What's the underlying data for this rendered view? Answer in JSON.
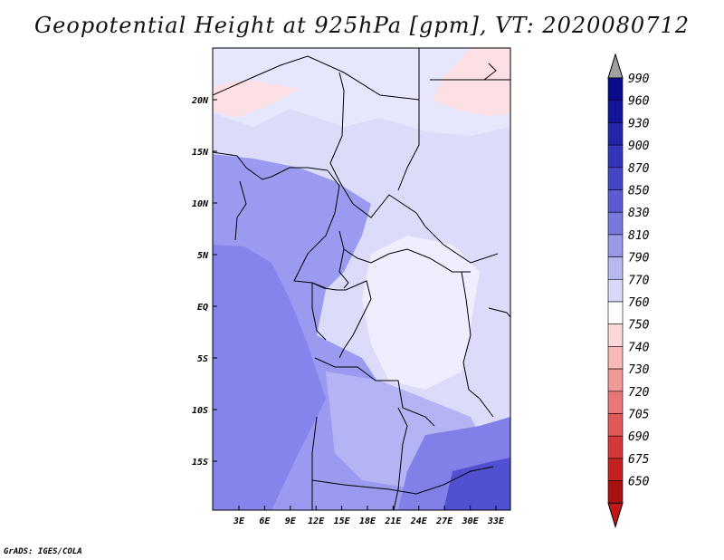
{
  "title": "Geopotential Height at 925hPa [gpm], VT: 2020080712",
  "credit": "GrADS: IGES/COLA",
  "map": {
    "lat_labels": [
      "20N",
      "15N",
      "10N",
      "5N",
      "EQ",
      "5S",
      "10S",
      "15S"
    ],
    "lon_labels": [
      "3E",
      "6E",
      "9E",
      "12E",
      "15E",
      "18E",
      "21E",
      "24E",
      "27E",
      "30E",
      "33E"
    ]
  },
  "colorbar": {
    "levels": [
      "990",
      "960",
      "930",
      "900",
      "870",
      "850",
      "830",
      "810",
      "790",
      "770",
      "760",
      "750",
      "740",
      "730",
      "720",
      "705",
      "690",
      "675",
      "650"
    ],
    "colors": [
      "#0a0a8a",
      "#14149a",
      "#2424aa",
      "#3434b8",
      "#4646c4",
      "#5c5cd0",
      "#7878dc",
      "#9898e6",
      "#b8b8f0",
      "#d8d8f8",
      "#ffffff",
      "#fcd8d8",
      "#f8b8b8",
      "#f09898",
      "#e87878",
      "#e05858",
      "#d43838",
      "#c42020",
      "#a81010"
    ],
    "color_names": {
      "top_arrow": "#a0a0a0",
      "bottom_arrow": "#c01818"
    }
  },
  "fields": {
    "land_main": "#dcdcfa",
    "north_pale": "#e6e6fc",
    "coast_purple": "#9a9af0",
    "atlantic": "#8484ec",
    "congo_white": "#eeeefe",
    "south_mid": "#b4b4f4",
    "southeast": "#8080e8",
    "deep_se": "#5050d0",
    "pink": "#fce0e4",
    "border": "#000000"
  }
}
